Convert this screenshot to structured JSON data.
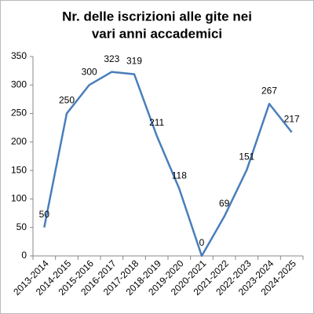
{
  "chart_data": {
    "type": "line",
    "title": [
      "Nr. delle iscrizioni alle gite nei",
      "vari anni accademici"
    ],
    "categories": [
      "2013-2014",
      "2014-2015",
      "2015-2016",
      "2016-2017",
      "2017-2018",
      "2018-2019",
      "2019-2020",
      "2020-2021",
      "2021-2022",
      "2022-2023",
      "2023-2024",
      "2024-2025"
    ],
    "values": [
      50,
      250,
      300,
      323,
      319,
      211,
      118,
      0,
      69,
      151,
      267,
      217
    ],
    "color": "#4a7ebb",
    "ylim": [
      0,
      350
    ],
    "yticks": [
      0,
      50,
      100,
      150,
      200,
      250,
      300,
      350
    ],
    "grid": false
  }
}
